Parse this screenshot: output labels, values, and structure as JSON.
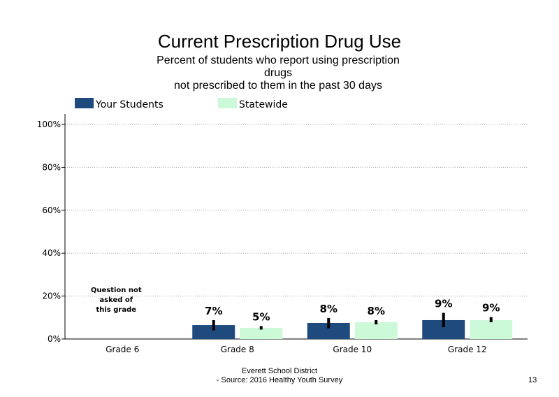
{
  "title": "Current Prescription Drug Use",
  "subtitle_lines": [
    "Percent of students  who report using prescription",
    "drugs",
    "not prescribed to them in the past 30 days"
  ],
  "footer_lines": [
    "Everett School District",
    "- Source: 2016 Healthy  Youth Survey"
  ],
  "page_number": "13",
  "colors": {
    "your_students": "#1f4a7e",
    "statewide": "#ccf9d8",
    "error_bar": "#000000",
    "gridline": "#a0a0a0"
  },
  "chart_data": {
    "type": "bar",
    "title": "Current Prescription Drug Use",
    "categories": [
      "Grade 6",
      "Grade 8",
      "Grade 10",
      "Grade 12"
    ],
    "series": [
      {
        "name": "Your Students",
        "values": [
          null,
          6.5,
          7.5,
          8.8
        ],
        "labels": [
          "",
          "7%",
          "8%",
          "9%"
        ],
        "error_low": [
          null,
          4.0,
          5.0,
          5.5
        ],
        "error_high": [
          null,
          8.8,
          9.8,
          12.2
        ]
      },
      {
        "name": "Statewide",
        "values": [
          null,
          5.2,
          7.8,
          8.8
        ],
        "labels": [
          "",
          "5%",
          "8%",
          "9%"
        ],
        "error_low": [
          null,
          4.4,
          6.8,
          7.8
        ],
        "error_high": [
          null,
          6.0,
          8.8,
          10.2
        ]
      }
    ],
    "annotations": [
      {
        "category": "Grade 6",
        "lines": [
          "Question not",
          "asked of",
          "this grade"
        ]
      }
    ],
    "y_ticks": [
      "0%",
      "20%",
      "40%",
      "60%",
      "80%",
      "100%"
    ],
    "ylim": [
      0,
      100
    ],
    "grid": true,
    "legend_position": "top"
  }
}
